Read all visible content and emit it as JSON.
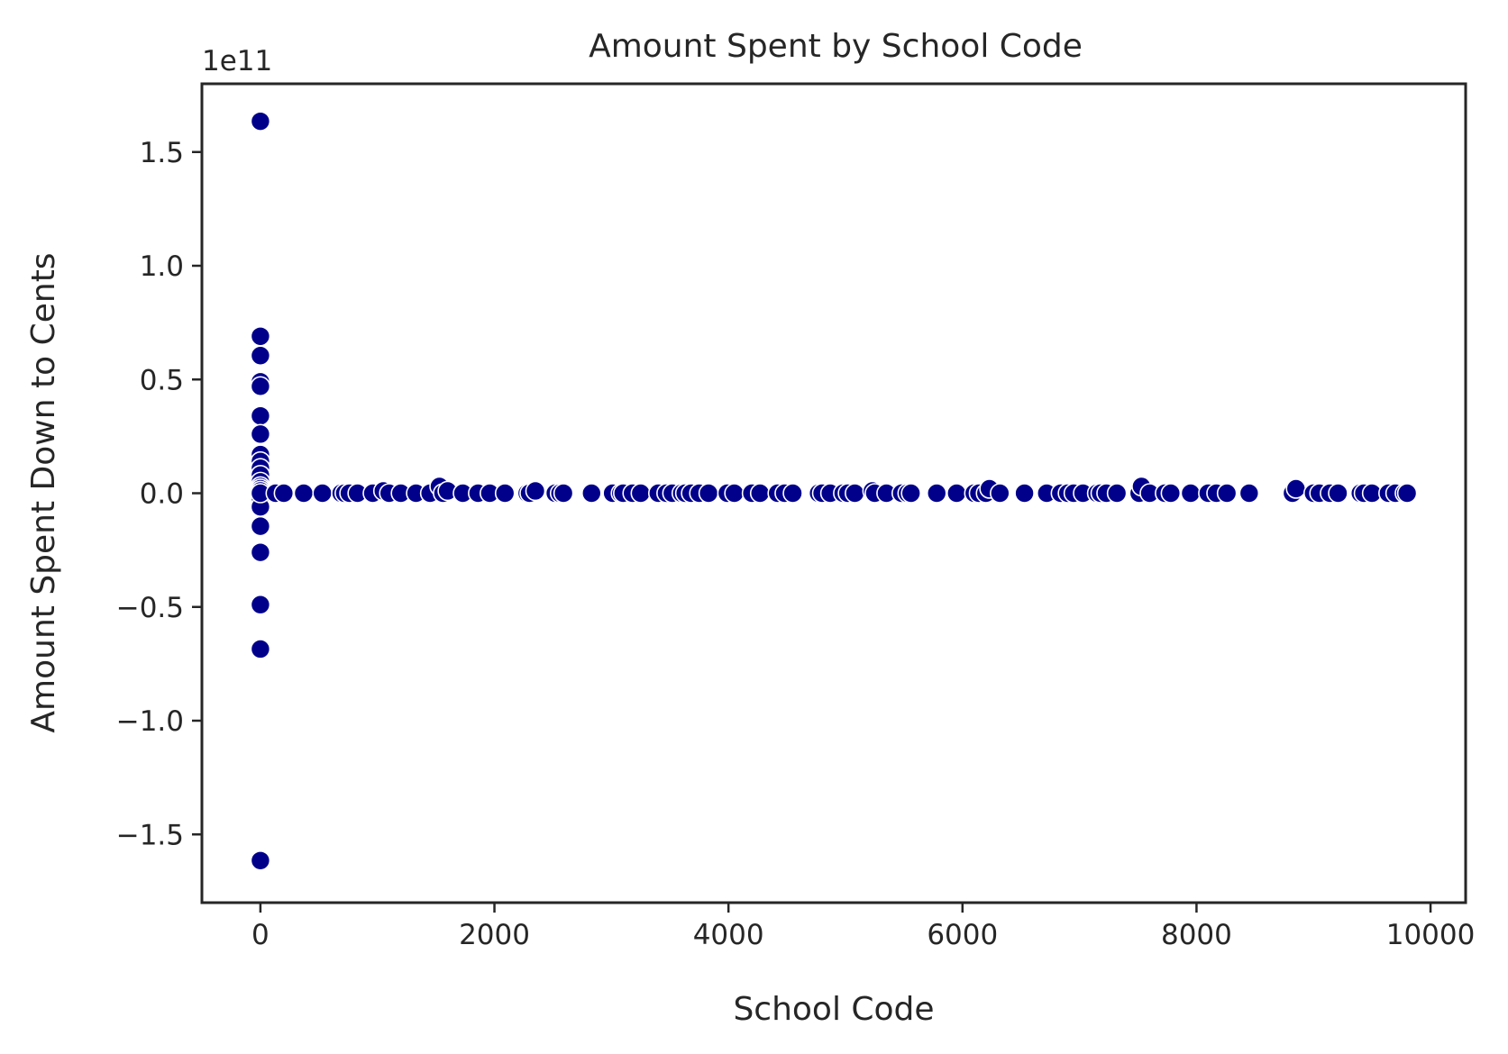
{
  "chart_data": {
    "type": "scatter",
    "title": "Amount Spent by School Code",
    "xlabel": "School Code",
    "ylabel": "Amount Spent Down to Cents",
    "y_offset_label": "1e11",
    "y_scale_exponent": 11,
    "xlim": [
      -500,
      10300
    ],
    "ylim": [
      -1.8,
      1.8
    ],
    "xticks": [
      0,
      2000,
      4000,
      6000,
      8000,
      10000
    ],
    "xtick_labels": [
      "0",
      "2000",
      "4000",
      "6000",
      "8000",
      "10000"
    ],
    "yticks": [
      1.5,
      1.0,
      0.5,
      0.0,
      -0.5,
      -1.0,
      -1.5
    ],
    "ytick_labels": [
      "1.5",
      "1.0",
      "0.5",
      "0.0",
      "−0.5",
      "−1.0",
      "−1.5"
    ],
    "grid": false,
    "marker_color": "#00008b",
    "marker_edge_color": "#ffffff",
    "series": [
      {
        "x": [
          0,
          0,
          0,
          0,
          0,
          0,
          0,
          0,
          0,
          0,
          0,
          0,
          0,
          0,
          0,
          0,
          0,
          0,
          0,
          0,
          0,
          0,
          0,
          0,
          0,
          130,
          200,
          370,
          530,
          690,
          720,
          760,
          830,
          960,
          1050,
          1100,
          1200,
          1330,
          1450,
          1530,
          1560,
          1600,
          1730,
          1860,
          1960,
          2090,
          2280,
          2300,
          2350,
          2520,
          2560,
          2590,
          2830,
          3010,
          3080,
          3100,
          3180,
          3250,
          3400,
          3470,
          3520,
          3600,
          3630,
          3680,
          3750,
          3830,
          3990,
          4050,
          4200,
          4270,
          4420,
          4480,
          4550,
          4770,
          4800,
          4870,
          4980,
          5020,
          5080,
          5230,
          5250,
          5350,
          5480,
          5530,
          5560,
          5780,
          5950,
          6100,
          6140,
          6200,
          6230,
          6320,
          6530,
          6720,
          6840,
          6900,
          6950,
          7030,
          7150,
          7180,
          7230,
          7320,
          7510,
          7530,
          7600,
          7730,
          7780,
          7950,
          8100,
          8170,
          8260,
          8450,
          8820,
          8850,
          9000,
          9050,
          9140,
          9210,
          9400,
          9430,
          9500,
          9640,
          9700,
          9780,
          9800
        ],
        "y": [
          1.635,
          0.69,
          0.605,
          0.49,
          0.47,
          0.34,
          0.26,
          0.17,
          0.14,
          0.11,
          0.08,
          0.05,
          0.03,
          0.02,
          0.01,
          0.0,
          -0.005,
          -0.02,
          -0.06,
          -0.145,
          -0.26,
          -0.49,
          -0.685,
          -1.615,
          0.0,
          0.0,
          0.0,
          0.0,
          0.0,
          0.0,
          0.0,
          0.0,
          0.0,
          0.0,
          0.01,
          0.0,
          0.0,
          0.0,
          0.0,
          0.03,
          0.0,
          0.01,
          0.0,
          0.0,
          0.0,
          0.0,
          0.0,
          0.0,
          0.01,
          0.0,
          0.0,
          0.0,
          0.0,
          0.0,
          0.0,
          0.0,
          0.0,
          0.0,
          0.0,
          0.0,
          0.0,
          0.0,
          0.0,
          0.0,
          0.0,
          0.0,
          0.0,
          0.0,
          0.0,
          0.0,
          0.0,
          0.0,
          0.0,
          0.0,
          0.0,
          0.0,
          0.0,
          0.0,
          0.0,
          0.01,
          0.0,
          0.0,
          0.0,
          0.0,
          0.0,
          0.0,
          0.0,
          0.0,
          0.0,
          0.0,
          0.02,
          0.0,
          0.0,
          0.0,
          0.0,
          0.0,
          0.0,
          0.0,
          0.0,
          0.0,
          0.0,
          0.0,
          0.0,
          0.03,
          0.0,
          0.0,
          0.0,
          0.0,
          0.0,
          0.0,
          0.0,
          0.0,
          0.0,
          0.02,
          0.0,
          0.0,
          0.0,
          0.0,
          0.0,
          0.0,
          0.0,
          0.0,
          0.0,
          0.0,
          0.0
        ]
      }
    ]
  }
}
